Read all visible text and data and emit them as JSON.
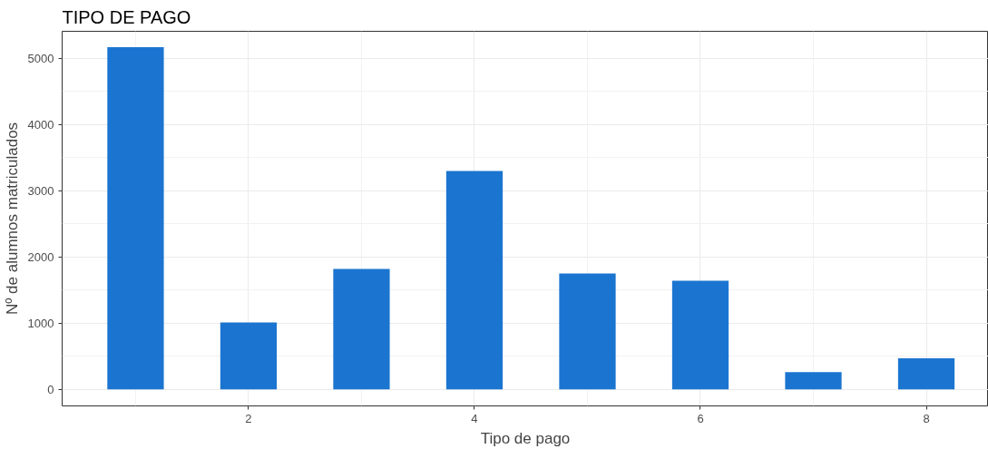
{
  "chart_data": {
    "type": "bar",
    "title": "TIPO DE PAGO",
    "xlabel": "Tipo de pago",
    "ylabel": "Nº de alumnos matriculados",
    "x": [
      1,
      2,
      3,
      4,
      5,
      6,
      7,
      8
    ],
    "values": [
      5170,
      1010,
      1820,
      3300,
      1750,
      1640,
      260,
      470
    ],
    "color": "#1b75d0",
    "xlim": [
      0.35,
      8.55
    ],
    "xticks": [
      2,
      4,
      6,
      8
    ],
    "ylim": [
      -250,
      5410
    ],
    "yticks": [
      0,
      1000,
      2000,
      3000,
      4000,
      5000
    ],
    "grid": true
  }
}
